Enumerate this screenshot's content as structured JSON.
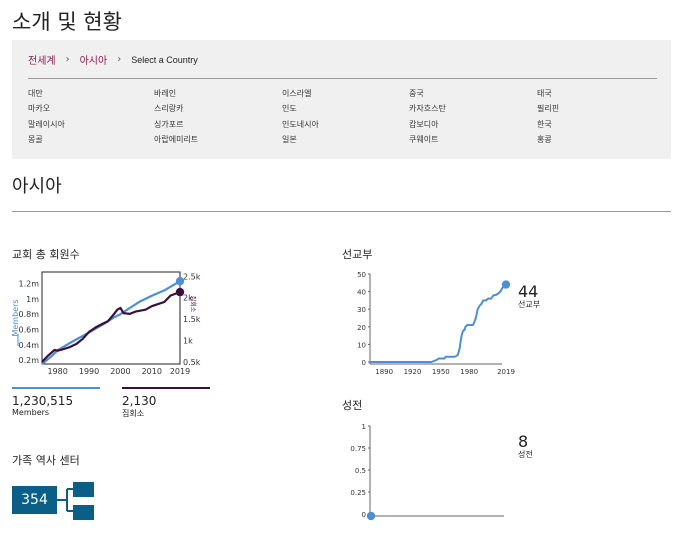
{
  "page": {
    "title": "소개 및 현황"
  },
  "breadcrumb": {
    "world": "전세계",
    "asia": "아시아",
    "current": "Select a Country",
    "sep": "›"
  },
  "countries": [
    [
      "대만",
      "바레인",
      "이스라엘",
      "중국",
      "태국"
    ],
    [
      "마카오",
      "스리랑카",
      "인도",
      "카자흐스탄",
      "필리핀"
    ],
    [
      "말레이시아",
      "싱가포르",
      "인도네시아",
      "캄보디아",
      "한국"
    ],
    [
      "몽골",
      "아랍에미리트",
      "일본",
      "쿠웨이트",
      "홍콩"
    ]
  ],
  "section": {
    "title": "아시아"
  },
  "membership": {
    "title": "교회 총 회원수",
    "members_value": "1,230,515",
    "members_label": "Members",
    "units_value": "2,130",
    "units_label": "집회소",
    "colors": {
      "members": "#4d8fd1",
      "units": "#3a0f3b"
    }
  },
  "missions": {
    "title": "선교부",
    "value": "44",
    "label": "선교부"
  },
  "temples": {
    "title": "성전",
    "value": "8",
    "label": "성전"
  },
  "family_history": {
    "title": "가족 역사 센터",
    "value": "354"
  },
  "chart_data": [
    {
      "type": "line",
      "title": "교회 총 회원수",
      "ylabel": "Members",
      "y2label": "집회소",
      "xlim": [
        1975,
        2019
      ],
      "ylim": [
        150000,
        1350000
      ],
      "y2lim": [
        450,
        2600
      ],
      "x_ticks": [
        "1980",
        "1990",
        "2000",
        "2010",
        "2019"
      ],
      "y_ticks": [
        "0.2m",
        "0.4m",
        "0.6m",
        "0.8m",
        "1m",
        "1.2m"
      ],
      "y2_ticks": [
        "0.5k",
        "1k",
        "1.5k",
        "2k",
        "2.5k"
      ],
      "series": [
        {
          "name": "Members",
          "axis": "left",
          "color": "#4d8fd1",
          "x": [
            1975,
            1978,
            1980,
            1985,
            1990,
            1995,
            1998,
            2000,
            2003,
            2006,
            2010,
            2014,
            2019
          ],
          "y": [
            150000,
            250000,
            330000,
            450000,
            560000,
            680000,
            760000,
            800000,
            880000,
            960000,
            1040000,
            1110000,
            1230515
          ]
        },
        {
          "name": "집회소",
          "axis": "right",
          "color": "#3a0f3b",
          "x": [
            1975,
            1977,
            1979,
            1980,
            1982,
            1984,
            1986,
            1988,
            1990,
            1992,
            1994,
            1996,
            1998,
            1999,
            2000,
            2001,
            2003,
            2005,
            2008,
            2010,
            2012,
            2014,
            2016,
            2019
          ],
          "y": [
            500,
            650,
            780,
            760,
            800,
            850,
            920,
            1040,
            1200,
            1300,
            1380,
            1450,
            1620,
            1720,
            1760,
            1640,
            1620,
            1680,
            1720,
            1800,
            1850,
            1900,
            2050,
            2130
          ]
        }
      ]
    },
    {
      "type": "line",
      "title": "선교부",
      "xlim": [
        1875,
        2019
      ],
      "ylim": [
        0,
        50
      ],
      "x_ticks": [
        "1890",
        "1920",
        "1950",
        "1980",
        "2019"
      ],
      "y_ticks": [
        "0",
        "10",
        "20",
        "30",
        "40",
        "50"
      ],
      "series": [
        {
          "name": "선교부",
          "color": "#4d8fd1",
          "x": [
            1875,
            1900,
            1940,
            1945,
            1948,
            1950,
            1954,
            1955,
            1958,
            1962,
            1965,
            1968,
            1969,
            1970,
            1971,
            1972,
            1973,
            1974,
            1975,
            1976,
            1978,
            1980,
            1982,
            1984,
            1985,
            1987,
            1989,
            1991,
            1993,
            1995,
            1998,
            2000,
            2003,
            2006,
            2008,
            2011,
            2013,
            2015,
            2017,
            2019
          ],
          "y": [
            0,
            0,
            0,
            1,
            2,
            2,
            2,
            3,
            3,
            3,
            3,
            4,
            6,
            8,
            12,
            15,
            17,
            18,
            18,
            20,
            21,
            21,
            21,
            21,
            22,
            25,
            30,
            32,
            33,
            35,
            35,
            36,
            36,
            38,
            38,
            39,
            40,
            42,
            43,
            44
          ]
        }
      ]
    },
    {
      "type": "line",
      "title": "성전",
      "ylim": [
        0,
        1
      ],
      "y_ticks": [
        "0",
        "0.25",
        "0.5",
        "0.75",
        "1"
      ],
      "series": [
        {
          "name": "성전",
          "color": "#4d8fd1",
          "x": [
            0
          ],
          "y": [
            0
          ]
        }
      ]
    }
  ]
}
